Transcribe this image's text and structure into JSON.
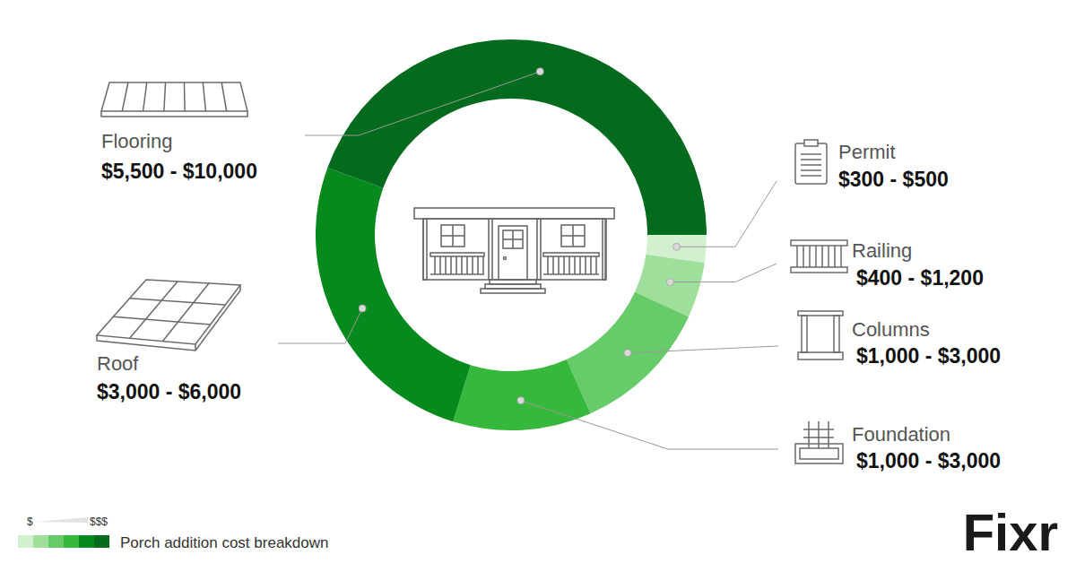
{
  "chart_data": {
    "type": "donut",
    "slices": [
      {
        "name": "Permit",
        "low": 300,
        "high": 500,
        "label": "$300 - $500",
        "color": "#d2f0cf"
      },
      {
        "name": "Railing",
        "low": 400,
        "high": 1200,
        "label": "$400 - $1,200",
        "color": "#9ddf9b"
      },
      {
        "name": "Columns",
        "low": 1000,
        "high": 3000,
        "label": "$1,000 - $3,000",
        "color": "#66cb68"
      },
      {
        "name": "Foundation",
        "low": 1000,
        "high": 3000,
        "label": "$1,000 - $3,000",
        "color": "#36b83c"
      },
      {
        "name": "Roof",
        "low": 3000,
        "high": 6000,
        "label": "$3,000 - $6,000",
        "color": "#068a1d"
      },
      {
        "name": "Flooring",
        "low": 5500,
        "high": 10000,
        "label": "$5,500 - $10,000",
        "color": "#046b1e"
      }
    ],
    "caption": "Porch addition cost breakdown",
    "scale_labels": [
      "$",
      "$$$"
    ],
    "data_labels": true
  },
  "brand": "Fixr"
}
